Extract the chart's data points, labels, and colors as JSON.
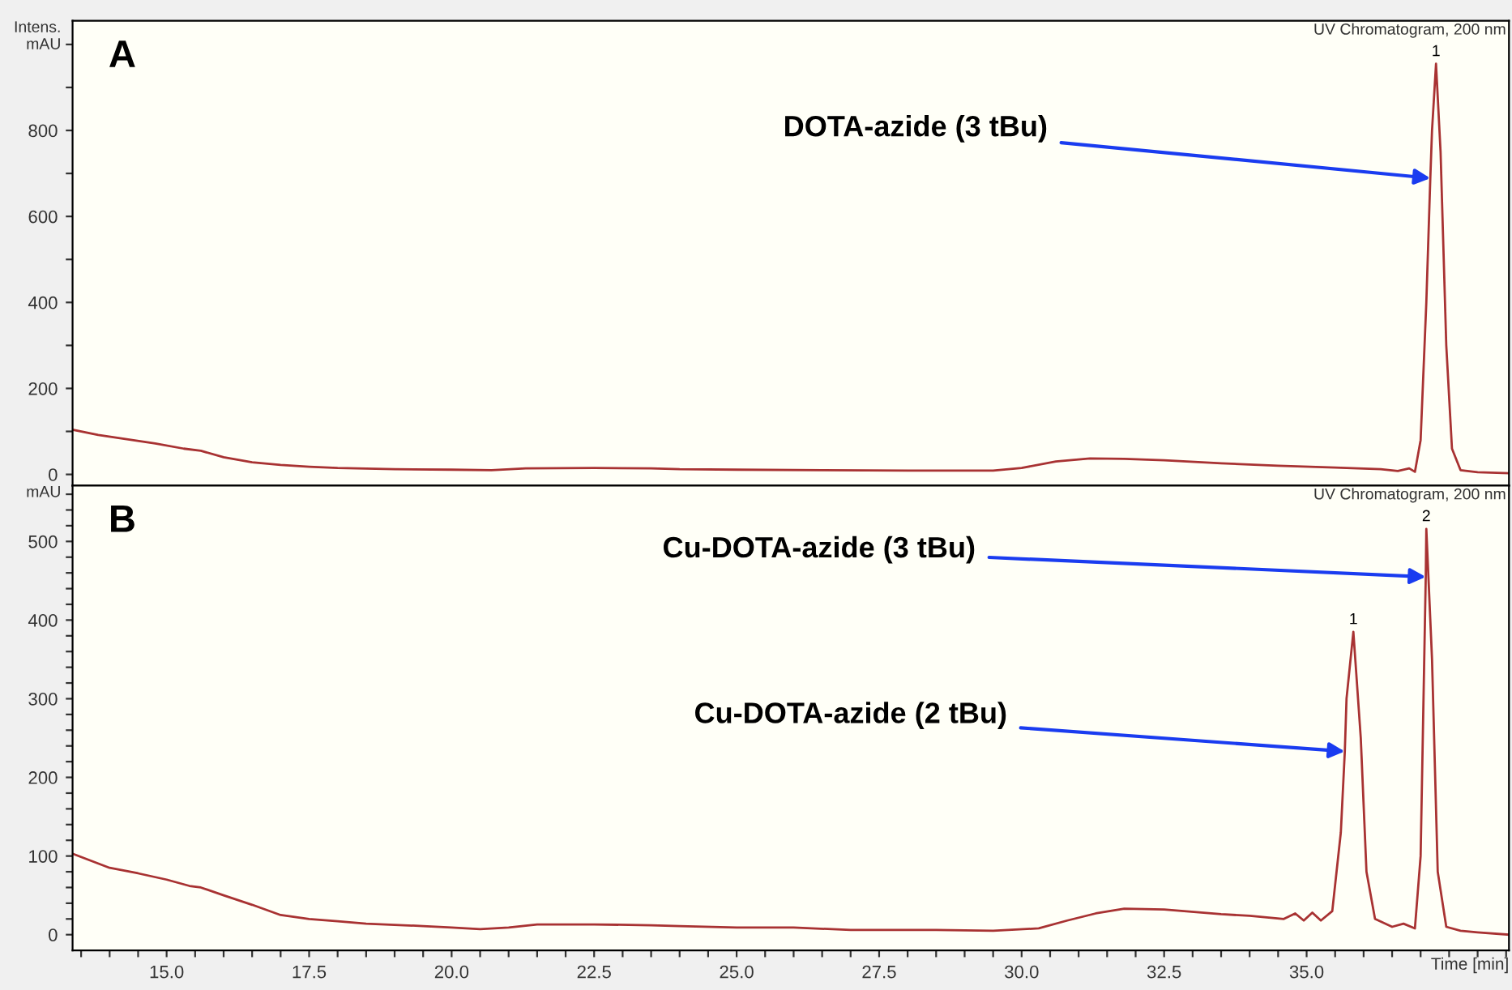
{
  "chart_data": [
    {
      "type": "line",
      "title": "A",
      "ylabel": "Intens.\nmAU",
      "tick_labels": "y",
      "xlim": [
        13.35,
        38.55
      ],
      "ylim": [
        -26,
        1055
      ],
      "yticks": [
        0,
        {
          "value": 100,
          "label": null
        },
        200,
        {
          "value": 300,
          "label": null
        },
        400,
        {
          "value": 500,
          "label": null
        },
        600,
        {
          "value": 700,
          "label": null
        },
        800,
        {
          "value": 900,
          "label": null
        },
        {
          "value": 1000,
          "label": null
        }
      ],
      "series": [
        {
          "color": "#a83232",
          "x": [
            13.35,
            13.8,
            14.3,
            14.8,
            15.3,
            15.6,
            16.0,
            16.5,
            17.0,
            17.5,
            18.0,
            19.0,
            20.0,
            20.7,
            21.3,
            22.5,
            23.5,
            24.0,
            25.0,
            26.5,
            28.0,
            29.5,
            30.0,
            30.6,
            31.2,
            31.8,
            32.5,
            33.5,
            34.5,
            35.5,
            36.3,
            36.6,
            36.8,
            36.9,
            37.0,
            37.1,
            37.17,
            37.2,
            37.27,
            37.35,
            37.45,
            37.55,
            37.7,
            38.0,
            38.55
          ],
          "values": [
            104,
            92,
            82,
            72,
            60,
            55,
            40,
            28,
            22,
            18,
            15,
            12,
            11,
            10,
            14,
            15,
            14,
            12,
            11,
            10,
            9,
            9,
            15,
            30,
            37,
            36,
            33,
            26,
            20,
            16,
            12,
            8,
            14,
            6,
            80,
            400,
            689,
            800,
            955,
            750,
            300,
            60,
            10,
            5,
            3
          ]
        }
      ],
      "annotations": [
        "UV Chromatogram, 200 nm",
        {
          "text": "DOTA-azide (3 tBu)",
          "x": 37.17,
          "y": 689
        },
        {
          "text": "1",
          "x": 37.27,
          "y": 955
        }
      ]
    },
    {
      "type": "line",
      "title": "B",
      "ylabel": "mAU",
      "xlabel": "Time [min]",
      "xlim": [
        13.35,
        38.55
      ],
      "ylim": [
        -20,
        571
      ],
      "xticks": [
        {
          "value": 13.5,
          "label": null
        },
        {
          "value": 14,
          "label": null
        },
        {
          "value": 14.5,
          "label": null
        },
        {
          "value": 15,
          "label": "15.0"
        },
        {
          "value": 15.5,
          "label": null
        },
        {
          "value": 16,
          "label": null
        },
        {
          "value": 16.5,
          "label": null
        },
        {
          "value": 17,
          "label": null
        },
        {
          "value": 17.5,
          "label": "17.5"
        },
        {
          "value": 18,
          "label": null
        },
        {
          "value": 18.5,
          "label": null
        },
        {
          "value": 19,
          "label": null
        },
        {
          "value": 19.5,
          "label": null
        },
        {
          "value": 20,
          "label": "20.0"
        },
        {
          "value": 20.5,
          "label": null
        },
        {
          "value": 21,
          "label": null
        },
        {
          "value": 21.5,
          "label": null
        },
        {
          "value": 22,
          "label": null
        },
        {
          "value": 22.5,
          "label": "22.5"
        },
        {
          "value": 23,
          "label": null
        },
        {
          "value": 23.5,
          "label": null
        },
        {
          "value": 24,
          "label": null
        },
        {
          "value": 24.5,
          "label": null
        },
        {
          "value": 25,
          "label": "25.0"
        },
        {
          "value": 25.5,
          "label": null
        },
        {
          "value": 26,
          "label": null
        },
        {
          "value": 26.5,
          "label": null
        },
        {
          "value": 27,
          "label": null
        },
        {
          "value": 27.5,
          "label": "27.5"
        },
        {
          "value": 28,
          "label": null
        },
        {
          "value": 28.5,
          "label": null
        },
        {
          "value": 29,
          "label": null
        },
        {
          "value": 29.5,
          "label": null
        },
        {
          "value": 30,
          "label": "30.0"
        },
        {
          "value": 30.5,
          "label": null
        },
        {
          "value": 31,
          "label": null
        },
        {
          "value": 31.5,
          "label": null
        },
        {
          "value": 32,
          "label": null
        },
        {
          "value": 32.5,
          "label": "32.5"
        },
        {
          "value": 33,
          "label": null
        },
        {
          "value": 33.5,
          "label": null
        },
        {
          "value": 34,
          "label": null
        },
        {
          "value": 34.5,
          "label": null
        },
        {
          "value": 35,
          "label": "35.0"
        },
        {
          "value": 35.5,
          "label": null
        },
        {
          "value": 36,
          "label": null
        },
        {
          "value": 36.5,
          "label": null
        },
        {
          "value": 37,
          "label": null
        },
        {
          "value": 37.5,
          "label": null
        },
        {
          "value": 38,
          "label": null
        },
        {
          "value": 38.5,
          "label": null
        }
      ],
      "yticks": [
        0,
        {
          "value": 20,
          "label": null
        },
        {
          "value": 40,
          "label": null
        },
        {
          "value": 60,
          "label": null
        },
        {
          "value": 80,
          "label": null
        },
        100,
        {
          "value": 120,
          "label": null
        },
        {
          "value": 140,
          "label": null
        },
        {
          "value": 160,
          "label": null
        },
        {
          "value": 180,
          "label": null
        },
        200,
        {
          "value": 220,
          "label": null
        },
        {
          "value": 240,
          "label": null
        },
        {
          "value": 260,
          "label": null
        },
        {
          "value": 280,
          "label": null
        },
        300,
        {
          "value": 320,
          "label": null
        },
        {
          "value": 340,
          "label": null
        },
        {
          "value": 360,
          "label": null
        },
        {
          "value": 380,
          "label": null
        },
        400,
        {
          "value": 420,
          "label": null
        },
        {
          "value": 440,
          "label": null
        },
        {
          "value": 460,
          "label": null
        },
        {
          "value": 480,
          "label": null
        },
        500,
        {
          "value": 520,
          "label": null
        },
        {
          "value": 540,
          "label": null
        },
        {
          "value": 560,
          "label": null
        }
      ],
      "series": [
        {
          "color": "#a83232",
          "x": [
            13.35,
            14.0,
            14.5,
            15.0,
            15.4,
            15.6,
            16.0,
            16.5,
            17.0,
            17.5,
            18.0,
            18.5,
            19.5,
            20.0,
            20.5,
            21.0,
            21.5,
            22.5,
            23.5,
            24.0,
            25.0,
            26.0,
            27.0,
            28.5,
            29.5,
            30.3,
            30.8,
            31.3,
            31.8,
            32.5,
            33.5,
            34.0,
            34.6,
            34.8,
            34.95,
            35.1,
            35.25,
            35.45,
            35.6,
            35.67,
            35.7,
            35.82,
            35.95,
            36.05,
            36.2,
            36.5,
            36.7,
            36.9,
            37.0,
            37.09,
            37.1,
            37.2,
            37.3,
            37.45,
            37.7,
            38.0,
            38.55
          ],
          "values": [
            103,
            85,
            78,
            70,
            62,
            60,
            50,
            38,
            25,
            20,
            17,
            14,
            11,
            9,
            7,
            9,
            13,
            13,
            12,
            11,
            9,
            9,
            6,
            6,
            5,
            8,
            18,
            27,
            33,
            32,
            26,
            24,
            20,
            27,
            18,
            28,
            18,
            30,
            130,
            233,
            300,
            385,
            250,
            80,
            20,
            10,
            14,
            8,
            100,
            455,
            516,
            350,
            80,
            10,
            5,
            3,
            0
          ]
        }
      ],
      "annotations": [
        "UV Chromatogram, 200 nm",
        {
          "text": "Cu-DOTA-azide (3 tBu)",
          "x": 37.09,
          "y": 455
        },
        {
          "text": "Cu-DOTA-azide (2 tBu)",
          "x": 35.67,
          "y": 233
        },
        {
          "text": "1",
          "x": 35.82,
          "y": 385
        },
        {
          "text": "2",
          "x": 37.1,
          "y": 516
        }
      ]
    }
  ]
}
